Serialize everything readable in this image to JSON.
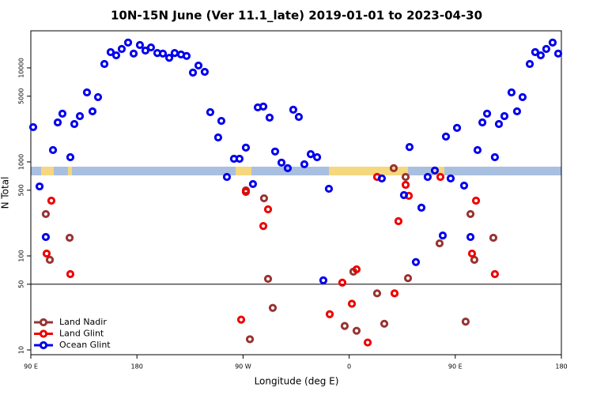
{
  "chart_data": {
    "type": "scatter",
    "title": "10N-15N June (Ver 11.1_late)   2019-01-01 to 2023-04-30",
    "xlabel": "Longitude (deg E)",
    "ylabel": "N Total",
    "xlim": [
      90,
      540
    ],
    "xticks": [
      {
        "value": 90,
        "label": "90 E"
      },
      180,
      {
        "value": 270,
        "label": "90 W"
      },
      {
        "value": 360,
        "label": "0"
      },
      {
        "value": 450,
        "label": "90 E"
      },
      {
        "value": 540,
        "label": "180"
      }
    ],
    "ylim": [
      8.9,
      24800
    ],
    "yscale": "log",
    "yticks": [
      10,
      50,
      100,
      500,
      1000,
      5000,
      10000
    ],
    "hline": 50,
    "legend": "lower left",
    "series": [
      {
        "name": "Land Nadir",
        "color": "#993333",
        "x": [
          102.7,
          106.1,
          122.9,
          275.8,
          272.4,
          287.8,
          291.2,
          295.2,
          356.2,
          363.6,
          366.3,
          383.7,
          389.8,
          397.8,
          407.9,
          409.9,
          436.7,
          458.8,
          462.9,
          466.2,
          482.3
        ],
        "values": [
          279,
          91,
          156,
          13,
          498,
          410,
          57,
          28,
          18,
          68,
          16,
          40,
          19,
          858,
          692,
          58,
          136,
          20,
          279,
          91,
          156
        ]
      },
      {
        "name": "Land Glint",
        "color": "#ee0000",
        "x": [
          103.4,
          107.4,
          123.5,
          268.4,
          272.4,
          287.2,
          291.2,
          343.5,
          354.2,
          362.3,
          366.3,
          375.7,
          383.7,
          398.5,
          401.8,
          407.9,
          410.6,
          437.4,
          464.2,
          467.6,
          483.6
        ],
        "values": [
          106,
          387,
          64,
          21,
          480,
          208,
          313,
          24,
          52,
          31,
          72,
          12,
          692,
          40,
          234,
          570,
          436,
          692,
          106,
          387,
          64
        ]
      },
      {
        "name": "Ocean Glint",
        "color": "#0000ee",
        "x": [
          92,
          97.4,
          102.7,
          108.8,
          112.8,
          116.8,
          123.5,
          126.9,
          131.6,
          137.6,
          142.3,
          147,
          152.4,
          157.7,
          162.4,
          167.1,
          172.5,
          177.2,
          182.5,
          187.2,
          191.9,
          197.3,
          202,
          207.4,
          212,
          217.4,
          222.1,
          227.5,
          232.2,
          237.5,
          242.2,
          248.9,
          251.6,
          256.3,
          262.3,
          267,
          272.4,
          278.4,
          282.5,
          287.2,
          292.5,
          297.2,
          302.6,
          307.9,
          312.6,
          317.3,
          322,
          327.4,
          332.8,
          338.1,
          342.8,
          387.7,
          406.5,
          411.2,
          416.6,
          421.3,
          426.6,
          432.7,
          439.4,
          442.1,
          446.1,
          451.5,
          457.5,
          462.9,
          468.9,
          473,
          477,
          483.6,
          487,
          491.7,
          497.7,
          502.4,
          507.1,
          513.2,
          517.8,
          522.5,
          527.2,
          532.6,
          537.3
        ],
        "values": [
          2344,
          548,
          159,
          1337,
          2630,
          3260,
          1122,
          2530,
          3070,
          5480,
          3450,
          4890,
          11000,
          14700,
          13600,
          15900,
          18600,
          14200,
          17500,
          15300,
          16500,
          14400,
          14200,
          12800,
          14400,
          13900,
          13400,
          8910,
          10600,
          9080,
          3380,
          1820,
          2730,
          692,
          1080,
          1080,
          1420,
          582,
          3800,
          3880,
          2960,
          1290,
          982,
          858,
          3590,
          3010,
          944,
          1210,
          1122,
          55,
          518,
          667,
          444,
          1440,
          86,
          326,
          692,
          809,
          165,
          1860,
          667,
          2300,
          560,
          159,
          1337,
          2630,
          3260,
          1122,
          2530,
          3070,
          5480,
          3450,
          4890,
          11000,
          14700,
          13600,
          15900,
          18600,
          14200
        ]
      }
    ]
  }
}
